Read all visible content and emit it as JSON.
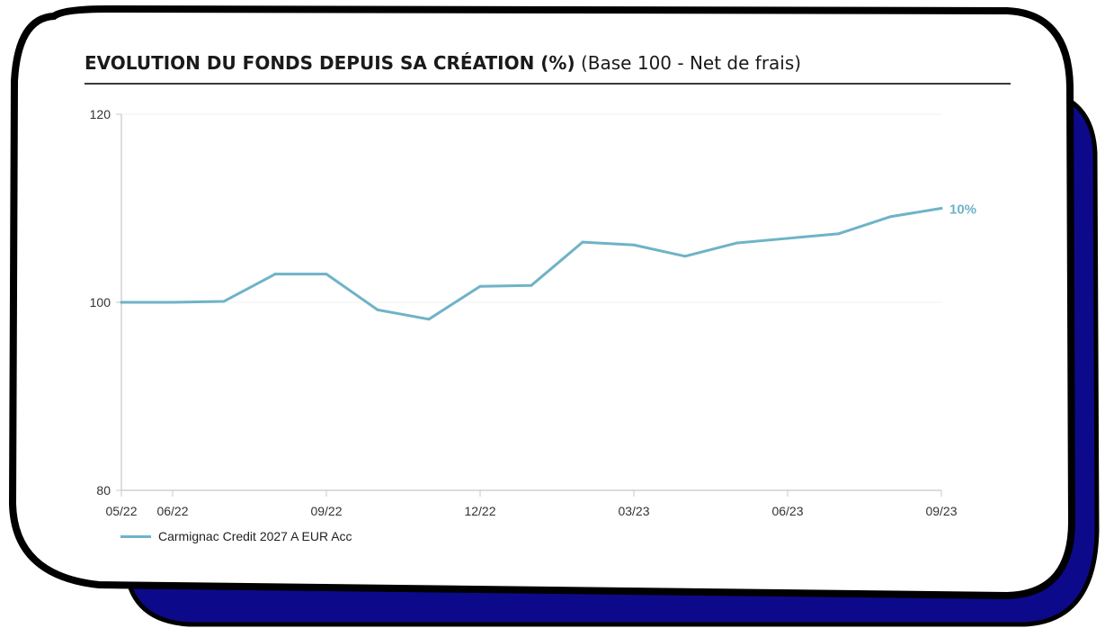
{
  "header": {
    "title_bold": "EVOLUTION DU FONDS DEPUIS SA CRÉATION (%)",
    "title_normal": "(Base 100 - Net de frais)"
  },
  "colors": {
    "line": "#6fb3c8",
    "frame_shadow": "#0c0a8a",
    "frame_border": "#000000",
    "axis": "#c8c8c8",
    "grid": "#f0f0f0"
  },
  "legend": {
    "label": "Carmignac Credit 2027 A EUR Acc"
  },
  "chart_data": {
    "type": "line",
    "x_ticks": [
      "05/22",
      "06/22",
      "09/22",
      "12/22",
      "03/23",
      "06/23",
      "09/23"
    ],
    "x_tick_index": [
      0,
      1,
      4,
      7,
      10,
      13,
      16
    ],
    "y_ticks": [
      80,
      100,
      120
    ],
    "ylim": [
      80,
      120
    ],
    "grid": true,
    "series": [
      {
        "name": "Carmignac Credit 2027 A EUR Acc",
        "x": [
          "05/22",
          "06/22",
          "07/22",
          "08/22",
          "09/22",
          "10/22",
          "11/22",
          "12/22",
          "01/23",
          "02/23",
          "03/23",
          "04/23",
          "05/23",
          "06/23",
          "07/23",
          "08/23",
          "09/23"
        ],
        "values": [
          100.0,
          100.0,
          100.1,
          103.0,
          103.0,
          99.2,
          98.2,
          101.7,
          101.8,
          106.4,
          106.1,
          104.9,
          106.3,
          106.8,
          107.3,
          109.1,
          110.0
        ],
        "end_label": "10%"
      }
    ],
    "legend_position": "bottom-left"
  }
}
